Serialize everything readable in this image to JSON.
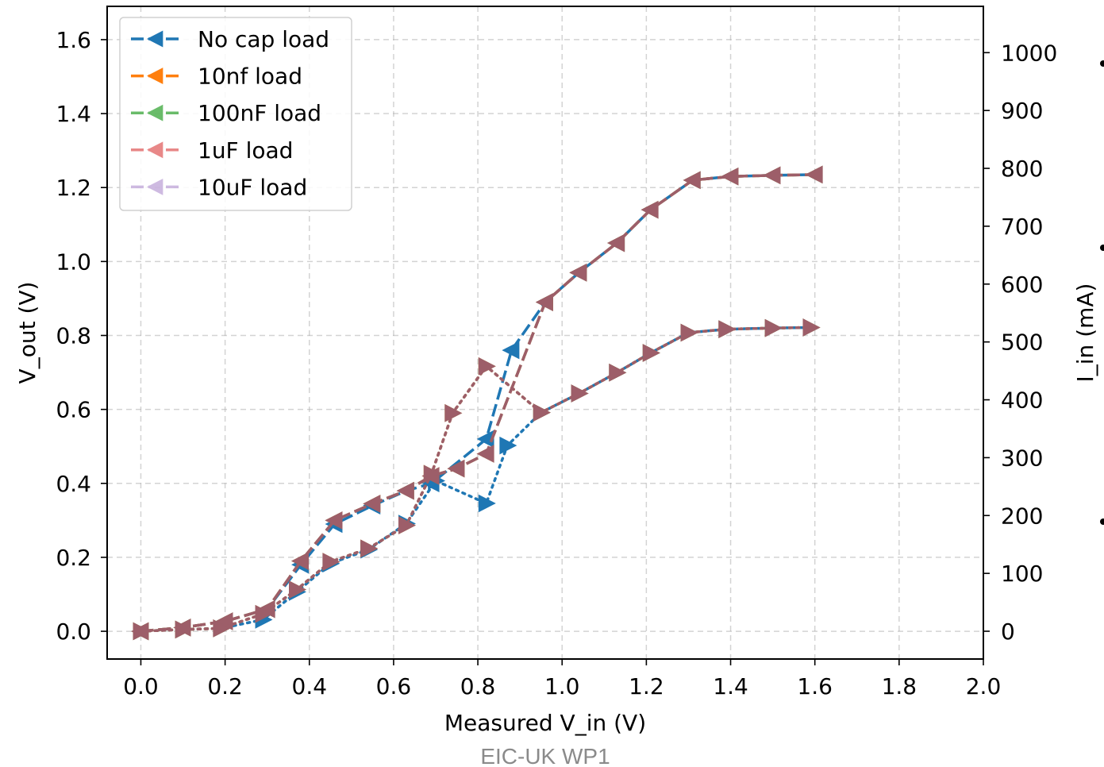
{
  "chart_data": {
    "type": "line",
    "xlabel": "Measured V_in (V)",
    "ylabel": "V_out (V)",
    "y2label": "I_in (mA)",
    "footer": "EIC-UK WP1",
    "xlim": [
      -0.08,
      2.0
    ],
    "ylim": [
      -0.075,
      1.69
    ],
    "y2lim": [
      -48.0,
      1080.0
    ],
    "xticks": [
      "0.0",
      "0.2",
      "0.4",
      "0.6",
      "0.8",
      "1.0",
      "1.2",
      "1.4",
      "1.6",
      "1.8",
      "2.0"
    ],
    "yticks": [
      "0.0",
      "0.2",
      "0.4",
      "0.6",
      "0.8",
      "1.0",
      "1.2",
      "1.4",
      "1.6"
    ],
    "y2ticks": [
      "0",
      "100",
      "200",
      "300",
      "400",
      "500",
      "600",
      "700",
      "800",
      "900",
      "1000"
    ],
    "grid": true,
    "legend_position": "top-left",
    "series": [
      {
        "name": "No cap load",
        "color": "#1f77b4",
        "alpha": 1.0,
        "vout": {
          "x": [
            0.0,
            0.1,
            0.2,
            0.3,
            0.38,
            0.46,
            0.55,
            0.63,
            0.69,
            0.82,
            0.88,
            0.96,
            1.04,
            1.13,
            1.21,
            1.31,
            1.4,
            1.5,
            1.6
          ],
          "y": [
            0.0,
            0.01,
            0.027,
            0.06,
            0.18,
            0.29,
            0.34,
            0.38,
            0.4,
            0.52,
            0.76,
            0.89,
            0.97,
            1.05,
            1.14,
            1.22,
            1.23,
            1.233,
            1.235
          ]
        },
        "iin": {
          "x": [
            0.0,
            0.1,
            0.19,
            0.29,
            0.37,
            0.45,
            0.54,
            0.63,
            0.7,
            0.82,
            0.87,
            0.95,
            1.04,
            1.13,
            1.21,
            1.3,
            1.39,
            1.5,
            1.59
          ],
          "y": [
            0,
            3,
            5,
            20,
            68,
            117,
            141,
            186,
            260,
            221,
            321,
            378,
            411,
            447,
            481,
            516,
            522,
            524,
            525
          ]
        }
      },
      {
        "name": "10nf load",
        "color": "#ff7f0e",
        "alpha": 1.0,
        "vout": {
          "x": [
            0.0,
            0.1,
            0.2,
            0.3,
            0.38,
            0.46,
            0.55,
            0.63,
            0.69,
            0.75,
            0.82,
            0.96,
            1.04,
            1.13,
            1.21,
            1.31,
            1.4,
            1.5,
            1.6
          ],
          "y": [
            0.0,
            0.01,
            0.027,
            0.06,
            0.19,
            0.3,
            0.345,
            0.38,
            0.42,
            0.44,
            0.48,
            0.89,
            0.97,
            1.05,
            1.14,
            1.22,
            1.23,
            1.233,
            1.235
          ]
        },
        "iin": {
          "x": [
            0.0,
            0.1,
            0.19,
            0.29,
            0.37,
            0.45,
            0.54,
            0.63,
            0.69,
            0.74,
            0.82,
            0.95,
            1.04,
            1.13,
            1.21,
            1.3,
            1.39,
            1.5,
            1.59
          ],
          "y": [
            0,
            3,
            5,
            30,
            72,
            120,
            143,
            183,
            272,
            377,
            458,
            378,
            411,
            447,
            481,
            516,
            522,
            524,
            525
          ]
        }
      },
      {
        "name": "100nF load",
        "color": "#2ca02c",
        "alpha": 0.7,
        "vout": {
          "x": [
            0.0,
            0.1,
            0.2,
            0.3,
            0.38,
            0.46,
            0.55,
            0.63,
            0.69,
            0.75,
            0.82,
            0.96,
            1.04,
            1.13,
            1.21,
            1.31,
            1.4,
            1.5,
            1.6
          ],
          "y": [
            0.0,
            0.01,
            0.027,
            0.06,
            0.19,
            0.3,
            0.345,
            0.38,
            0.42,
            0.44,
            0.48,
            0.89,
            0.97,
            1.05,
            1.14,
            1.22,
            1.23,
            1.233,
            1.235
          ]
        },
        "iin": {
          "x": [
            0.0,
            0.1,
            0.19,
            0.29,
            0.37,
            0.45,
            0.54,
            0.63,
            0.69,
            0.74,
            0.82,
            0.95,
            1.04,
            1.13,
            1.21,
            1.3,
            1.39,
            1.5,
            1.59
          ],
          "y": [
            0,
            3,
            5,
            30,
            72,
            120,
            143,
            183,
            272,
            377,
            458,
            378,
            411,
            447,
            481,
            516,
            522,
            524,
            525
          ]
        }
      },
      {
        "name": "1uF load",
        "color": "#d62728",
        "alpha": 0.55,
        "vout": {
          "x": [
            0.0,
            0.1,
            0.2,
            0.3,
            0.38,
            0.46,
            0.55,
            0.63,
            0.69,
            0.75,
            0.82,
            0.96,
            1.04,
            1.13,
            1.21,
            1.31,
            1.4,
            1.5,
            1.6
          ],
          "y": [
            0.0,
            0.01,
            0.027,
            0.06,
            0.19,
            0.3,
            0.345,
            0.38,
            0.42,
            0.44,
            0.48,
            0.89,
            0.97,
            1.05,
            1.14,
            1.22,
            1.23,
            1.233,
            1.235
          ]
        },
        "iin": {
          "x": [
            0.0,
            0.1,
            0.19,
            0.29,
            0.37,
            0.45,
            0.54,
            0.63,
            0.69,
            0.74,
            0.82,
            0.95,
            1.04,
            1.13,
            1.21,
            1.3,
            1.39,
            1.5,
            1.59
          ],
          "y": [
            0,
            3,
            5,
            30,
            72,
            120,
            143,
            183,
            272,
            377,
            458,
            378,
            411,
            447,
            481,
            516,
            522,
            524,
            525
          ]
        }
      },
      {
        "name": "10uF load",
        "color": "#9467bd",
        "alpha": 0.45,
        "vout": {
          "x": [
            0.0,
            0.1,
            0.2,
            0.3,
            0.38,
            0.46,
            0.55,
            0.63,
            0.69,
            0.75,
            0.82,
            0.96,
            1.04,
            1.13,
            1.21,
            1.31,
            1.4,
            1.5,
            1.6
          ],
          "y": [
            0.0,
            0.01,
            0.027,
            0.06,
            0.19,
            0.3,
            0.345,
            0.38,
            0.42,
            0.44,
            0.48,
            0.89,
            0.97,
            1.05,
            1.14,
            1.22,
            1.23,
            1.233,
            1.235
          ]
        },
        "iin": {
          "x": [
            0.0,
            0.1,
            0.19,
            0.29,
            0.37,
            0.45,
            0.54,
            0.63,
            0.69,
            0.74,
            0.82,
            0.95,
            1.04,
            1.13,
            1.21,
            1.3,
            1.39,
            1.5,
            1.59
          ],
          "y": [
            0,
            3,
            5,
            30,
            72,
            120,
            143,
            183,
            272,
            377,
            458,
            378,
            411,
            447,
            481,
            516,
            522,
            524,
            525
          ]
        }
      }
    ]
  }
}
